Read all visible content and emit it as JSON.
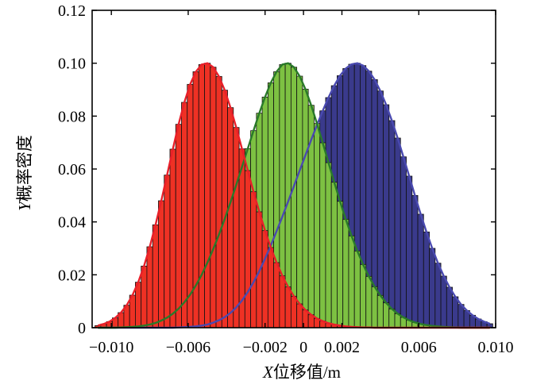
{
  "chart_data": {
    "type": "bar",
    "xlabel_var": "X",
    "xlabel_text": "位移值/m",
    "ylabel_var": "Y",
    "ylabel_text": "概率密度",
    "xlim": [
      -0.011,
      0.01
    ],
    "ylim": [
      0,
      0.12
    ],
    "x_ticks": [
      -0.01,
      -0.006,
      -0.002,
      0,
      0.002,
      0.006,
      0.01
    ],
    "x_tick_labels": [
      "−0.010",
      "−0.006",
      "−0.002",
      "0",
      "0.002",
      "0.006",
      "0.010"
    ],
    "y_ticks": [
      0,
      0.02,
      0.04,
      0.06,
      0.08,
      0.1,
      0.12
    ],
    "y_tick_labels": [
      "0",
      "0.02",
      "0.04",
      "0.06",
      "0.08",
      "0.10",
      "0.12"
    ],
    "grid": false,
    "bin_width": 0.0003,
    "series": [
      {
        "color": "#3a3a8c",
        "curve_color": "#4a4ab0",
        "x": [
          -0.0107,
          -0.0104,
          -0.0101,
          -0.0098,
          -0.0095,
          -0.0092,
          -0.0089,
          -0.0086,
          -0.0083,
          -0.008,
          -0.0077,
          -0.0074,
          -0.0071,
          -0.0068,
          -0.0065,
          -0.0062,
          -0.0059,
          -0.0056,
          -0.0053,
          -0.005,
          -0.0047,
          -0.0044,
          -0.0041,
          -0.0038,
          -0.0035,
          -0.0032,
          -0.0029,
          -0.0026,
          -0.0023,
          -0.002,
          -0.0017,
          -0.0014,
          -0.0011,
          -0.0008,
          -0.0005,
          -0.0002,
          0.0001,
          0.0004,
          0.0007,
          0.001,
          0.0013,
          0.0016,
          0.0019,
          0.0022,
          0.0025,
          0.0028,
          0.0031,
          0.0034,
          0.0037,
          0.004,
          0.0043,
          0.0046,
          0.0049,
          0.0052,
          0.0055,
          0.0058,
          0.0061,
          0.0064,
          0.0067,
          0.007,
          0.0073,
          0.0076,
          0.0079,
          0.0082,
          0.0085,
          0.0088,
          0.0091,
          0.0094,
          0.0097
        ],
        "values": [
          0.0,
          0.0,
          0.0,
          0.0,
          0.0,
          0.0,
          0.0,
          0.0,
          0.0,
          0.0,
          0.0,
          0.0,
          0.0,
          0.0,
          0.0001,
          0.0002,
          0.0003,
          0.0005,
          0.0008,
          0.0012,
          0.0019,
          0.0028,
          0.004,
          0.0056,
          0.0077,
          0.0103,
          0.0135,
          0.0172,
          0.0214,
          0.0261,
          0.0311,
          0.0365,
          0.042,
          0.0477,
          0.0535,
          0.0594,
          0.0652,
          0.071,
          0.0766,
          0.082,
          0.087,
          0.0915,
          0.0953,
          0.098,
          0.0996,
          0.1,
          0.0991,
          0.097,
          0.0938,
          0.0895,
          0.0843,
          0.0783,
          0.0717,
          0.0646,
          0.0573,
          0.05,
          0.0429,
          0.0362,
          0.03,
          0.0244,
          0.0195,
          0.0153,
          0.0117,
          0.0088,
          0.0065,
          0.0047,
          0.0033,
          0.0023,
          0.0015
        ]
      },
      {
        "color": "#7dc142",
        "curve_color": "#2a7a2a",
        "x": [
          -0.0107,
          -0.0104,
          -0.0101,
          -0.0098,
          -0.0095,
          -0.0092,
          -0.0089,
          -0.0086,
          -0.0083,
          -0.008,
          -0.0077,
          -0.0074,
          -0.0071,
          -0.0068,
          -0.0065,
          -0.0062,
          -0.0059,
          -0.0056,
          -0.0053,
          -0.005,
          -0.0047,
          -0.0044,
          -0.0041,
          -0.0038,
          -0.0035,
          -0.0032,
          -0.0029,
          -0.0026,
          -0.0023,
          -0.002,
          -0.0017,
          -0.0014,
          -0.0011,
          -0.0008,
          -0.0005,
          -0.0002,
          0.0001,
          0.0004,
          0.0007,
          0.001,
          0.0013,
          0.0016,
          0.0019,
          0.0022,
          0.0025,
          0.0028,
          0.0031,
          0.0034,
          0.0037,
          0.004,
          0.0043,
          0.0046,
          0.0049,
          0.0052,
          0.0055,
          0.0058,
          0.0061,
          0.0064,
          0.0067,
          0.007,
          0.0073,
          0.0076,
          0.0079,
          0.0082,
          0.0085,
          0.0088,
          0.0091,
          0.0094,
          0.0097
        ],
        "values": [
          0.0,
          0.0,
          0.0,
          0.0,
          0.0001,
          0.0002,
          0.0003,
          0.0005,
          0.0008,
          0.0012,
          0.0018,
          0.0027,
          0.0038,
          0.0053,
          0.0072,
          0.0096,
          0.0125,
          0.016,
          0.02,
          0.0246,
          0.0297,
          0.0352,
          0.0411,
          0.0474,
          0.054,
          0.0608,
          0.0677,
          0.0745,
          0.0811,
          0.0872,
          0.0926,
          0.0968,
          0.0995,
          0.1,
          0.0985,
          0.0951,
          0.0902,
          0.0841,
          0.0772,
          0.0699,
          0.0624,
          0.055,
          0.0478,
          0.041,
          0.0347,
          0.029,
          0.0239,
          0.0194,
          0.0155,
          0.0122,
          0.0094,
          0.0071,
          0.0053,
          0.0039,
          0.0028,
          0.002,
          0.0014,
          0.001,
          0.0007,
          0.0005,
          0.0003,
          0.0002,
          0.0001,
          0.0,
          0.0,
          0.0,
          0.0,
          0.0,
          0.0
        ]
      },
      {
        "color": "#ee3124",
        "curve_color": "#e8202a",
        "x": [
          -0.0107,
          -0.0104,
          -0.0101,
          -0.0098,
          -0.0095,
          -0.0092,
          -0.0089,
          -0.0086,
          -0.0083,
          -0.008,
          -0.0077,
          -0.0074,
          -0.0071,
          -0.0068,
          -0.0065,
          -0.0062,
          -0.0059,
          -0.0056,
          -0.0053,
          -0.005,
          -0.0047,
          -0.0044,
          -0.0041,
          -0.0038,
          -0.0035,
          -0.0032,
          -0.0029,
          -0.0026,
          -0.0023,
          -0.002,
          -0.0017,
          -0.0014,
          -0.0011,
          -0.0008,
          -0.0005,
          -0.0002,
          0.0001,
          0.0004,
          0.0007,
          0.001,
          0.0013,
          0.0016,
          0.0019,
          0.0022,
          0.0025,
          0.0028,
          0.0031,
          0.0034,
          0.0037,
          0.004,
          0.0043,
          0.0046,
          0.0049,
          0.0052,
          0.0055,
          0.0058,
          0.0061,
          0.0064,
          0.0067,
          0.007,
          0.0073,
          0.0076,
          0.0079,
          0.0082,
          0.0085,
          0.0088,
          0.0091,
          0.0094,
          0.0097
        ],
        "values": [
          0.0008,
          0.0014,
          0.0023,
          0.0037,
          0.0057,
          0.0085,
          0.0123,
          0.0172,
          0.0233,
          0.0306,
          0.0389,
          0.048,
          0.0577,
          0.0675,
          0.0769,
          0.0852,
          0.092,
          0.0968,
          0.0995,
          0.1,
          0.0985,
          0.095,
          0.0898,
          0.0832,
          0.0757,
          0.0676,
          0.0594,
          0.0514,
          0.0438,
          0.0367,
          0.0303,
          0.0246,
          0.0196,
          0.0154,
          0.0119,
          0.009,
          0.0067,
          0.0049,
          0.0035,
          0.0025,
          0.0017,
          0.0012,
          0.0008,
          0.0005,
          0.0003,
          0.0002,
          0.0001,
          0.0001,
          0.0,
          0.0,
          0.0,
          0.0,
          0.0,
          0.0,
          0.0,
          0.0,
          0.0,
          0.0,
          0.0,
          0.0,
          0.0,
          0.0,
          0.0,
          0.0,
          0.0,
          0.0,
          0.0,
          0.0,
          0.0
        ]
      }
    ]
  }
}
